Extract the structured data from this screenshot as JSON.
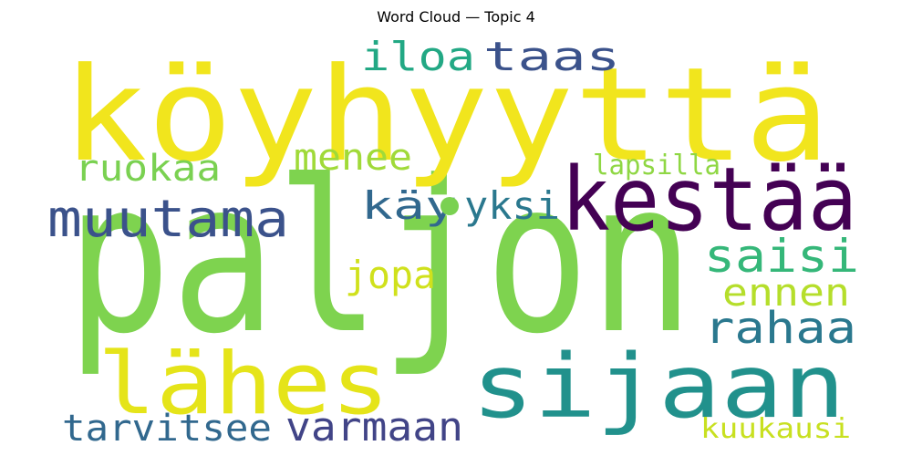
{
  "chart_data": {
    "type": "wordcloud",
    "title": "Word Cloud — Topic 4",
    "words": [
      {
        "text": "paljon",
        "weight": 1.0,
        "color": "#7ed34f"
      },
      {
        "text": "köyhyyttä",
        "weight": 0.95,
        "color": "#f1e51d"
      },
      {
        "text": "kestää",
        "weight": 0.55,
        "color": "#440154"
      },
      {
        "text": "sijaan",
        "weight": 0.55,
        "color": "#21918c"
      },
      {
        "text": "lähes",
        "weight": 0.5,
        "color": "#e5e419"
      },
      {
        "text": "muutama",
        "weight": 0.3,
        "color": "#3b528b"
      },
      {
        "text": "rahaa",
        "weight": 0.27,
        "color": "#2a788e"
      },
      {
        "text": "saisi",
        "weight": 0.25,
        "color": "#35b779"
      },
      {
        "text": "varmaan",
        "weight": 0.22,
        "color": "#414487"
      },
      {
        "text": "taas",
        "weight": 0.2,
        "color": "#3b528b"
      },
      {
        "text": "ruokaa",
        "weight": 0.2,
        "color": "#7ad151"
      },
      {
        "text": "menee",
        "weight": 0.2,
        "color": "#a0da39"
      },
      {
        "text": "iloa",
        "weight": 0.2,
        "color": "#22a884"
      },
      {
        "text": "tarvitsee",
        "weight": 0.19,
        "color": "#31688e"
      },
      {
        "text": "käy",
        "weight": 0.19,
        "color": "#31688e"
      },
      {
        "text": "yksi",
        "weight": 0.19,
        "color": "#2a788e"
      },
      {
        "text": "jopa",
        "weight": 0.19,
        "color": "#d0e11c"
      },
      {
        "text": "ennen",
        "weight": 0.19,
        "color": "#b5de2b"
      },
      {
        "text": "lapsilla",
        "weight": 0.14,
        "color": "#8fd744"
      },
      {
        "text": "kuukausi",
        "weight": 0.14,
        "color": "#c8e020"
      }
    ],
    "dot_color": "#7ad151"
  }
}
